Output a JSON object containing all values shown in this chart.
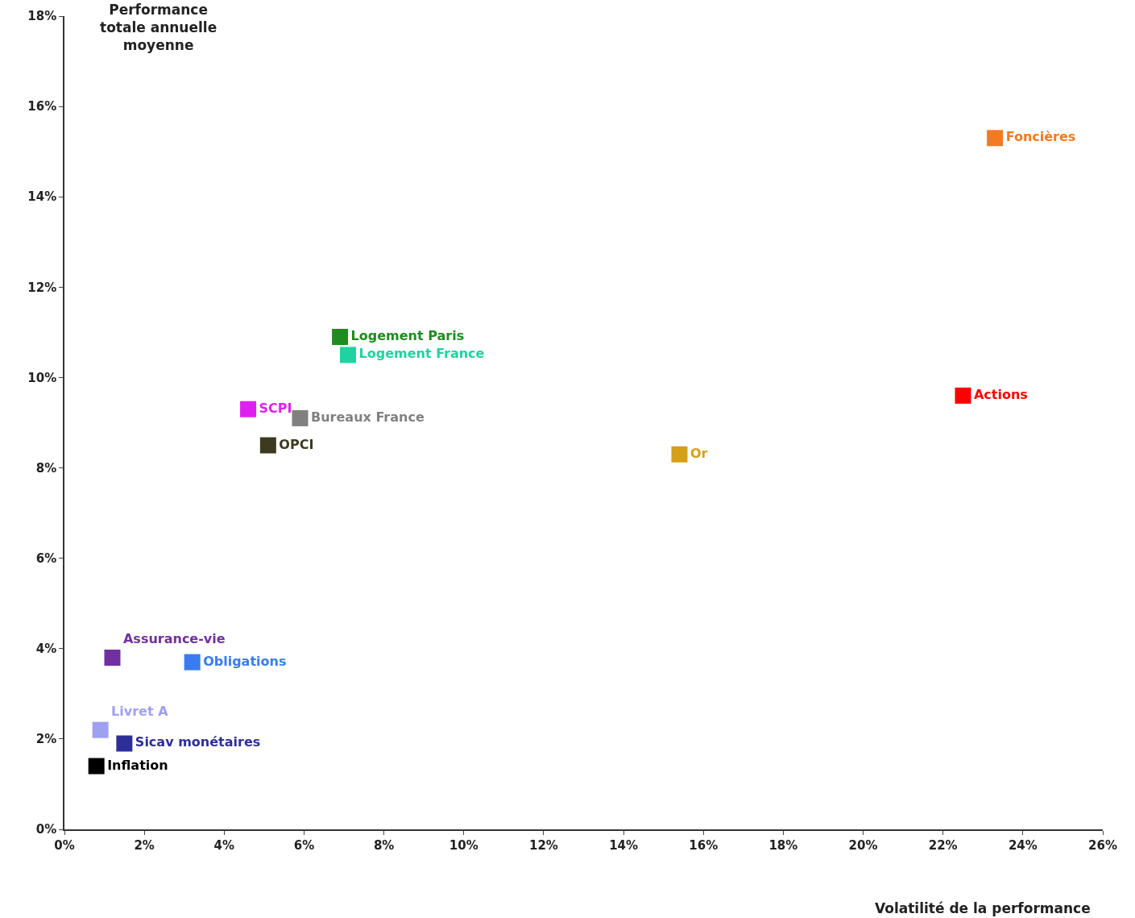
{
  "chart_data": {
    "type": "scatter",
    "xlabel": "Volatilité de la performance",
    "ylabel": "Performance totale annuelle moyenne",
    "marker": "square",
    "xlim": [
      0,
      26
    ],
    "ylim": [
      0,
      18
    ],
    "xticks": [
      {
        "value": 0,
        "label": "0%"
      },
      {
        "value": 2,
        "label": "2%"
      },
      {
        "value": 4,
        "label": "4%"
      },
      {
        "value": 6,
        "label": "6%"
      },
      {
        "value": 8,
        "label": "8%"
      },
      {
        "value": 10,
        "label": "10%"
      },
      {
        "value": 12,
        "label": "12%"
      },
      {
        "value": 14,
        "label": "14%"
      },
      {
        "value": 16,
        "label": "16%"
      },
      {
        "value": 18,
        "label": "18%"
      },
      {
        "value": 20,
        "label": "20%"
      },
      {
        "value": 22,
        "label": "22%"
      },
      {
        "value": 24,
        "label": "24%"
      },
      {
        "value": 26,
        "label": "26%"
      }
    ],
    "yticks": [
      {
        "value": 0,
        "label": "0%"
      },
      {
        "value": 2,
        "label": "2%"
      },
      {
        "value": 4,
        "label": "4%"
      },
      {
        "value": 6,
        "label": "6%"
      },
      {
        "value": 8,
        "label": "8%"
      },
      {
        "value": 10,
        "label": "10%"
      },
      {
        "value": 12,
        "label": "12%"
      },
      {
        "value": 14,
        "label": "14%"
      },
      {
        "value": 16,
        "label": "16%"
      },
      {
        "value": 18,
        "label": "18%"
      }
    ],
    "series": [
      {
        "name": "Foncières",
        "color": "#f47920",
        "x": [
          23.3
        ],
        "values": [
          15.3
        ]
      },
      {
        "name": "Actions",
        "color": "#ff0000",
        "x": [
          22.5
        ],
        "values": [
          9.6
        ]
      },
      {
        "name": "Or",
        "color": "#d4a017",
        "x": [
          15.4
        ],
        "values": [
          8.3
        ]
      },
      {
        "name": "Logement Paris",
        "color": "#1e8c1e",
        "x": [
          6.9
        ],
        "values": [
          10.9
        ]
      },
      {
        "name": "Logement France",
        "color": "#1fd3a0",
        "x": [
          7.1
        ],
        "values": [
          10.5
        ]
      },
      {
        "name": "SCPI",
        "color": "#e020f0",
        "x": [
          4.6
        ],
        "values": [
          9.3
        ]
      },
      {
        "name": "Bureaux France",
        "color": "#808080",
        "x": [
          5.9
        ],
        "values": [
          9.1
        ]
      },
      {
        "name": "OPCI",
        "color": "#3d3a20",
        "x": [
          5.1
        ],
        "values": [
          8.5
        ]
      },
      {
        "name": "Assurance-vie",
        "color": "#7030a0",
        "x": [
          1.2
        ],
        "values": [
          3.8
        ]
      },
      {
        "name": "Obligations",
        "color": "#3a7cf0",
        "x": [
          3.2
        ],
        "values": [
          3.7
        ]
      },
      {
        "name": "Livret A",
        "color": "#a0a0f0",
        "x": [
          0.9
        ],
        "values": [
          2.2
        ]
      },
      {
        "name": "Sicav monétaires",
        "color": "#2e2e9a",
        "x": [
          1.5
        ],
        "values": [
          1.9
        ]
      },
      {
        "name": "Inflation",
        "color": "#000000",
        "x": [
          0.8
        ],
        "values": [
          1.4
        ]
      }
    ]
  }
}
